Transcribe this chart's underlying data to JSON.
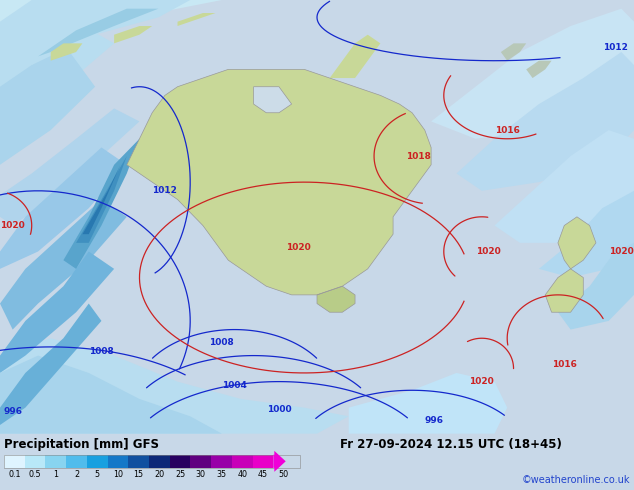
{
  "title_left": "Precipitation [mm] GFS",
  "title_right": "Fr 27-09-2024 12.15 UTC (18+45)",
  "credit": "©weatheronline.co.uk",
  "colorbar_levels": [
    "0.1",
    "0.5",
    "1",
    "2",
    "5",
    "10",
    "15",
    "20",
    "25",
    "30",
    "35",
    "40",
    "45",
    "50"
  ],
  "colorbar_colors": [
    "#dff4ff",
    "#b8e8f8",
    "#88d4f0",
    "#50bcec",
    "#18a0e0",
    "#1478c8",
    "#1050a0",
    "#0c2878",
    "#280060",
    "#600080",
    "#9800a8",
    "#c800b8",
    "#e800c8",
    "#f000d8"
  ],
  "bg_color": "#c8d8e8",
  "ocean_color": "#ccdce8",
  "land_color": "#c8d898",
  "land_edge": "#999999",
  "blue": "#1428cc",
  "red": "#cc2222",
  "white": "#ffffff"
}
